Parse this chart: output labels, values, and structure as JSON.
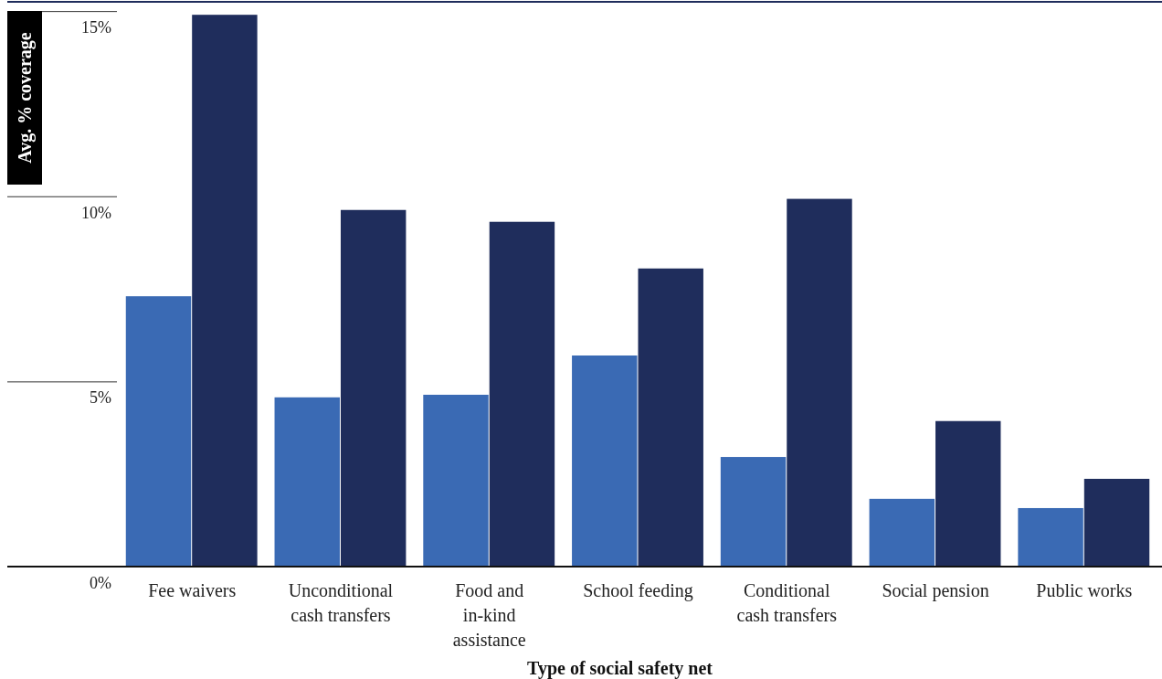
{
  "chart_data": {
    "type": "bar",
    "xlabel": "Type of social safety net",
    "ylabel": "Avg. % coverage",
    "categories": [
      "Fee waivers",
      "Unconditional cash transfers",
      "Food and in-kind assistance",
      "School feeding",
      "Conditional cash transfers",
      "Social pension",
      "Public works"
    ],
    "series": [
      {
        "color": "#3a6ab4",
        "values": [
          7.3,
          4.57,
          4.64,
          5.7,
          2.96,
          1.83,
          1.58
        ]
      },
      {
        "color": "#1f2d5c",
        "values": [
          14.9,
          9.63,
          9.31,
          8.05,
          9.93,
          3.93,
          2.37
        ]
      }
    ],
    "ylim": [
      0,
      15.25
    ],
    "yticks": [
      {
        "value": 0,
        "label": "0%"
      },
      {
        "value": 5,
        "label": "5%"
      },
      {
        "value": 10,
        "label": "10%"
      },
      {
        "value": 15,
        "label": "15%"
      }
    ],
    "grid": false
  }
}
